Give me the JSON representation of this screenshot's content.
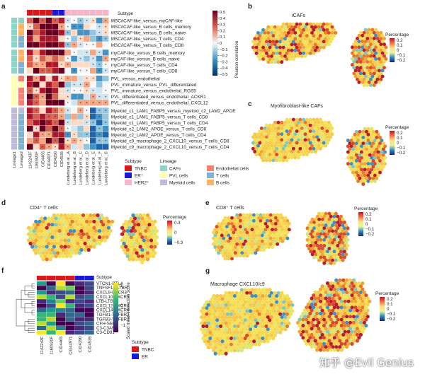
{
  "panels": {
    "a": {
      "label": "a",
      "subtype_label": "Subtype",
      "rows": [
        "MSC/iCAF-like_versus_myCAF-like",
        "MSC/iCAF-like_versus_B cells_memory",
        "MSC/iCAF-like_versus_B cells_naive",
        "MSC/iCAF-like_versus_T cells_CD4",
        "MSC/iCAF-like_versus_T cells_CD8",
        "myCAF-like_versus_B cells_memory",
        "myCAF-like_versus_B cells_naive",
        "myCAF-like_versus_T cells_CD4",
        "myCAF-like_versus_T cells_CD8",
        "PVL_versus_endothelial",
        "PVL_immature_versus_PVL_differentiated",
        "PVL_immature_versus_endothelial_RGS5",
        "PVL_differentiated_versus_endothelial_ACKR1",
        "PVL_differentiated_versus_endothelial_CXCL12",
        "Myeloid_c1_LAM1_FABP5_versus_myeloid_c2_LAM2_APOE",
        "Myeloid_c1_LAM1_FABP5_versus_T cells_CD8",
        "Myeloid_c1_LAM1_FABP5_versus_T cells_CD4",
        "Myeloid_c2_LAM2_APOE_versus_T cells_CD8",
        "Myeloid_c2_LAM2_APOE_versus_T cells_CD4",
        "Myeloid_c9_macrophage_2_CXCL10_versus_T cells_CD8",
        "Myeloid_c9_macrophage_2_CXCL10_versus_T cells_CD4"
      ],
      "columns": [
        "1142243F",
        "1160920F",
        "CID4465",
        "CID44971",
        "CID4290",
        "CID4535",
        "Lundeberg et al._A",
        "Lundeberg et al._B",
        "Lundeberg et al._C",
        "Lundeberg et al._D",
        "Lundeberg et al._E",
        "Lundeberg et al._F",
        "Lundeberg et al._G"
      ],
      "side_labels": [
        "Lineage1",
        "Lineage2"
      ],
      "colorbar": {
        "title": "Pearson correlation",
        "ticks": [
          "0.5",
          "0.4",
          "0.3",
          "0.2",
          "0.1",
          "0",
          "−0.1",
          "−0.2",
          "−0.3",
          "−0.4",
          "−0.5"
        ]
      },
      "legend_subtype": {
        "title": "Subtype",
        "items": [
          {
            "label": "TNBC",
            "color": "#d7191c"
          },
          {
            "label": "ER⁺",
            "color": "#1a1ad6"
          },
          {
            "label": "HER2⁺",
            "color": "#f4b6c6"
          }
        ]
      },
      "legend_lineage": {
        "title": "Lineage",
        "items": [
          {
            "label": "CAFs",
            "color": "#8dd3c7"
          },
          {
            "label": "PVL cells",
            "color": "#ffffb3"
          },
          {
            "label": "Myeloid cells",
            "color": "#bebada"
          },
          {
            "label": "Endothelial cells",
            "color": "#fb8072"
          },
          {
            "label": "T cells",
            "color": "#80b1d3"
          },
          {
            "label": "B cells",
            "color": "#fdb462"
          }
        ]
      }
    },
    "b": {
      "label": "b",
      "title": "iCAFs",
      "legend_title": "Percentage",
      "ticks": [
        "0.2",
        "0.1",
        "0",
        "−0.1",
        "−0.2"
      ]
    },
    "c": {
      "label": "c",
      "title": "Myofibroblast-like CAFs",
      "legend_title": "Percentage",
      "ticks": [
        "0.2",
        "0.1",
        "0",
        "−0.1",
        "−0.2"
      ]
    },
    "d": {
      "label": "d",
      "title": "CD4⁺ T cells",
      "legend_title": "Percentage",
      "ticks": [
        "0.3",
        "0",
        "−0.3"
      ]
    },
    "e": {
      "label": "e",
      "title": "CD8⁺ T cells",
      "legend_title": "Percentage",
      "ticks": [
        "0.2",
        "0.1",
        "0",
        "−0.1",
        "−0.2"
      ]
    },
    "f": {
      "label": "f",
      "subtype_label": "Subtype",
      "rows": [
        "VTCN1-BTLA",
        "TNFSF14-LTBR",
        "CXCL9-CXCR3",
        "CXCL10-CXCR3",
        "LTB-LTBR",
        "CXCL12-CXCR4",
        "CXCL14-CXCR4",
        "TGFB1-TGFBR2",
        "TGFB3-TGFBR2",
        "CFH-SELL",
        "C3-C3AR1",
        "C3-CD81"
      ],
      "columns": [
        "1142243F",
        "1160920F",
        "CID4465",
        "CID44971",
        "CID4290",
        "CID4535"
      ],
      "colorbar": {
        "title": "Scaled mean interaction score",
        "ticks": [
          "1",
          "0",
          "−1"
        ]
      },
      "legend": {
        "title": "Subtype",
        "items": [
          {
            "label": "TNBC",
            "color": "#d7191c"
          },
          {
            "label": "ER",
            "color": "#1a1ad6"
          }
        ]
      }
    },
    "g": {
      "label": "g",
      "title": "Macrophage CXCL10/c9",
      "legend_title": "Percentage",
      "ticks": [
        "0.2",
        "0.1",
        "0",
        "−0.1",
        "−0.2"
      ]
    }
  },
  "watermark": "知乎 @Evil Genius"
}
